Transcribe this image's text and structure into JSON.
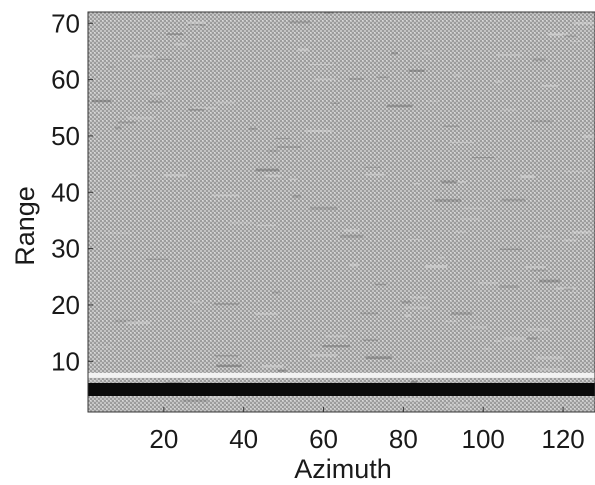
{
  "chart_data": {
    "type": "heatmap",
    "title": "",
    "xlabel": "Azimuth",
    "ylabel": "Range",
    "xlim": [
      1,
      128
    ],
    "ylim": [
      1,
      72
    ],
    "x_ticks": [
      20,
      40,
      60,
      80,
      100,
      120
    ],
    "y_ticks": [
      10,
      20,
      30,
      40,
      50,
      60,
      70
    ],
    "grid": false,
    "legend": "none",
    "colormap": "gray",
    "bands": [
      {
        "label": "bright return",
        "range_value": 7.5,
        "color": "#f2f2f2"
      },
      {
        "label": "dark return",
        "range_value": 5,
        "color": "#0a0a0a"
      }
    ],
    "background_colors": [
      "#9c9c9c",
      "#c4c4c4",
      "#dadada"
    ]
  }
}
